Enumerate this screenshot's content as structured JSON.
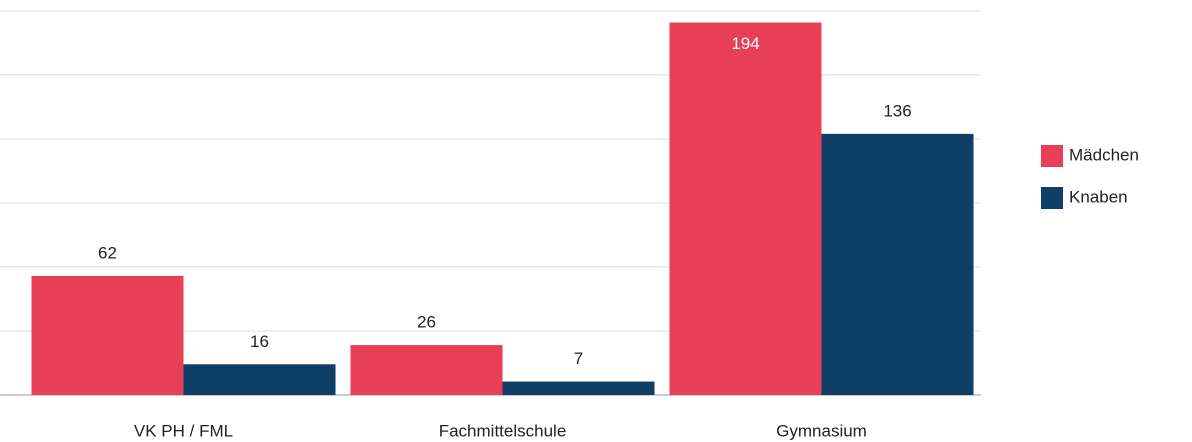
{
  "chart_data": {
    "type": "bar",
    "categories": [
      "VK PH / FML",
      "Fachmittelschule",
      "Gymnasium"
    ],
    "series": [
      {
        "name": "Mädchen",
        "color": "#e83f56",
        "values": [
          62,
          26,
          194
        ]
      },
      {
        "name": "Knaben",
        "color": "#0f3e66",
        "values": [
          16,
          7,
          136
        ]
      }
    ],
    "ylim": [
      0,
      200
    ],
    "yticks": [
      0,
      33.3,
      66.7,
      100,
      133.3,
      166.7,
      200
    ],
    "grid": true,
    "legend": "right"
  }
}
